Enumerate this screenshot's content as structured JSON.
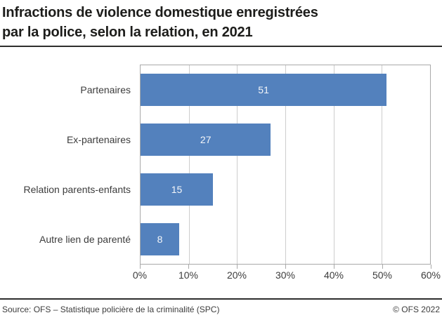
{
  "title": {
    "line1": "Infractions de violence domestique enregistrées",
    "line2": "par la police, selon la relation, en 2021"
  },
  "chart_data": {
    "type": "bar",
    "orientation": "horizontal",
    "title": "Infractions de violence domestique enregistrées par la police, selon la relation, en 2021",
    "categories": [
      "Partenaires",
      "Ex-partenaires",
      "Relation parents-enfants",
      "Autre lien de parenté"
    ],
    "values": [
      51,
      27,
      15,
      8
    ],
    "value_labels": [
      "51",
      "27",
      "15",
      "8"
    ],
    "unit": "%",
    "xlim": [
      0,
      60
    ],
    "x_tick_step": 10,
    "x_tick_labels": [
      "0%",
      "10%",
      "20%",
      "30%",
      "40%",
      "50%",
      "60%"
    ],
    "grid": true,
    "legend": false,
    "bar_color": "#5381bd",
    "value_label_color": "#f4f6f9",
    "gridline_color": "#cdcdcd",
    "axis_border_color": "#a9a9a9"
  },
  "footer": {
    "source": "Source: OFS – Statistique policière de la criminalité (SPC)",
    "copyright": "© OFS 2022"
  }
}
